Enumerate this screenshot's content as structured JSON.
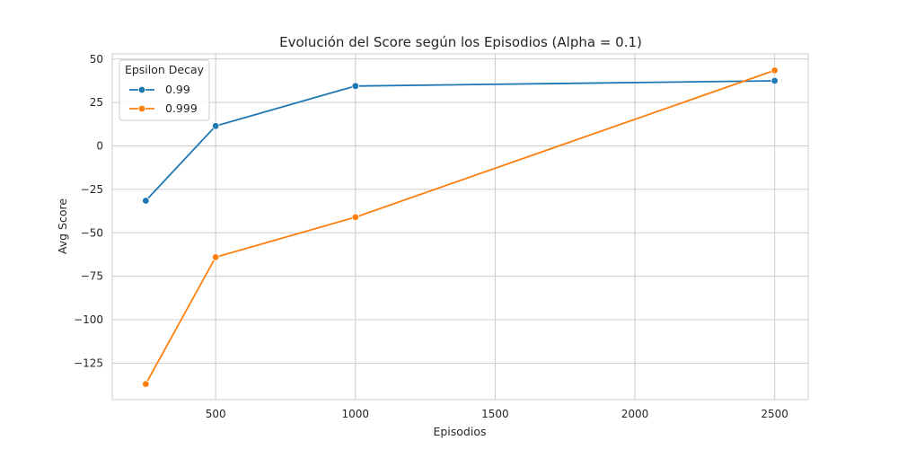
{
  "chart_data": {
    "type": "line",
    "title": "Evolución del Score según los Episodios (Alpha = 0.1)",
    "xlabel": "Episodios",
    "ylabel": "Avg Score",
    "xlim": [
      130,
      2620
    ],
    "ylim": [
      -146,
      53
    ],
    "xticks": [
      500,
      1000,
      1500,
      2000,
      2500
    ],
    "yticks": [
      50,
      25,
      0,
      -25,
      -50,
      -75,
      -100,
      -125
    ],
    "ytick_labels": [
      "50",
      "25",
      "0",
      "−25",
      "−50",
      "−75",
      "−100",
      "−125"
    ],
    "grid": true,
    "legend": {
      "title": "Epsilon Decay",
      "placement": "top-left"
    },
    "x": [
      250,
      500,
      1000,
      2500
    ],
    "series": [
      {
        "name": "0.99",
        "color": "#1f77b4",
        "values": [
          -31.5,
          11.5,
          34.5,
          37.5
        ]
      },
      {
        "name": "0.999",
        "color": "#ff7f0e",
        "values": [
          -137,
          -64,
          -41,
          43.5
        ]
      }
    ]
  }
}
